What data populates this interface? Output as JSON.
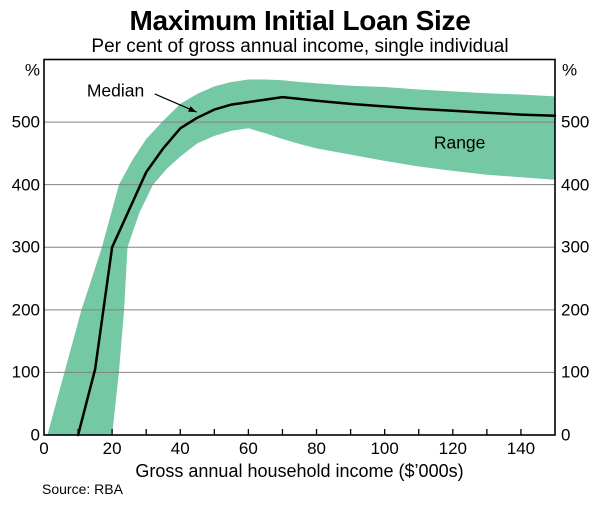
{
  "header": {
    "title": "Maximum Initial Loan Size",
    "subtitle": "Per cent of gross annual income, single individual"
  },
  "footer": {
    "source": "Source: RBA"
  },
  "chart_data": {
    "type": "area",
    "title": "Maximum Initial Loan Size",
    "subtitle": "Per cent of gross annual income, single individual",
    "xlabel": "Gross annual household income ($’000s)",
    "ylabel_left": "%",
    "ylabel_right": "%",
    "xlim": [
      0,
      150
    ],
    "ylim": [
      0,
      600
    ],
    "yticks": [
      0,
      100,
      200,
      300,
      400,
      500
    ],
    "ytick_label_sides": "both",
    "xtick_labels": [
      0,
      20,
      40,
      60,
      80,
      100,
      120,
      140
    ],
    "xtick_minor_step": 10,
    "grid": "horizontal",
    "colors": {
      "band": "#74c8a4",
      "median_line": "#000000",
      "grid": "#828282"
    },
    "series": [
      {
        "name": "Median",
        "type": "line",
        "points": [
          [
            10,
            0
          ],
          [
            15,
            105
          ],
          [
            20,
            300
          ],
          [
            25,
            360
          ],
          [
            30,
            420
          ],
          [
            35,
            458
          ],
          [
            40,
            490
          ],
          [
            45,
            507
          ],
          [
            50,
            520
          ],
          [
            55,
            528
          ],
          [
            60,
            532
          ],
          [
            65,
            536
          ],
          [
            70,
            540
          ],
          [
            75,
            537
          ],
          [
            80,
            534
          ],
          [
            90,
            529
          ],
          [
            100,
            525
          ],
          [
            110,
            521
          ],
          [
            120,
            518
          ],
          [
            130,
            515
          ],
          [
            140,
            512
          ],
          [
            150,
            510
          ]
        ]
      },
      {
        "name": "Range",
        "type": "band",
        "upper": [
          [
            1,
            0
          ],
          [
            6,
            100
          ],
          [
            11,
            200
          ],
          [
            17,
            300
          ],
          [
            22,
            400
          ],
          [
            26,
            440
          ],
          [
            30,
            473
          ],
          [
            35,
            502
          ],
          [
            40,
            529
          ],
          [
            45,
            545
          ],
          [
            50,
            557
          ],
          [
            55,
            564
          ],
          [
            60,
            568
          ],
          [
            65,
            568
          ],
          [
            70,
            567
          ],
          [
            75,
            564
          ],
          [
            80,
            562
          ],
          [
            90,
            558
          ],
          [
            100,
            556
          ],
          [
            110,
            552
          ],
          [
            120,
            549
          ],
          [
            130,
            546
          ],
          [
            140,
            544
          ],
          [
            150,
            541
          ]
        ],
        "lower": [
          [
            20,
            0
          ],
          [
            22,
            100
          ],
          [
            23.5,
            200
          ],
          [
            24.5,
            300
          ],
          [
            28,
            355
          ],
          [
            32,
            400
          ],
          [
            36,
            425
          ],
          [
            40,
            445
          ],
          [
            45,
            466
          ],
          [
            50,
            478
          ],
          [
            55,
            486
          ],
          [
            60,
            490
          ],
          [
            65,
            482
          ],
          [
            70,
            473
          ],
          [
            75,
            465
          ],
          [
            80,
            458
          ],
          [
            90,
            448
          ],
          [
            100,
            438
          ],
          [
            110,
            429
          ],
          [
            120,
            422
          ],
          [
            130,
            416
          ],
          [
            140,
            412
          ],
          [
            150,
            408
          ]
        ]
      }
    ],
    "annotations": [
      {
        "text": "Median",
        "x": 21,
        "y": 549,
        "arrow_from": [
          32.5,
          545
        ],
        "arrow_to": [
          44.8,
          516
        ]
      },
      {
        "text": "Range",
        "x": 122,
        "y": 466
      }
    ]
  }
}
